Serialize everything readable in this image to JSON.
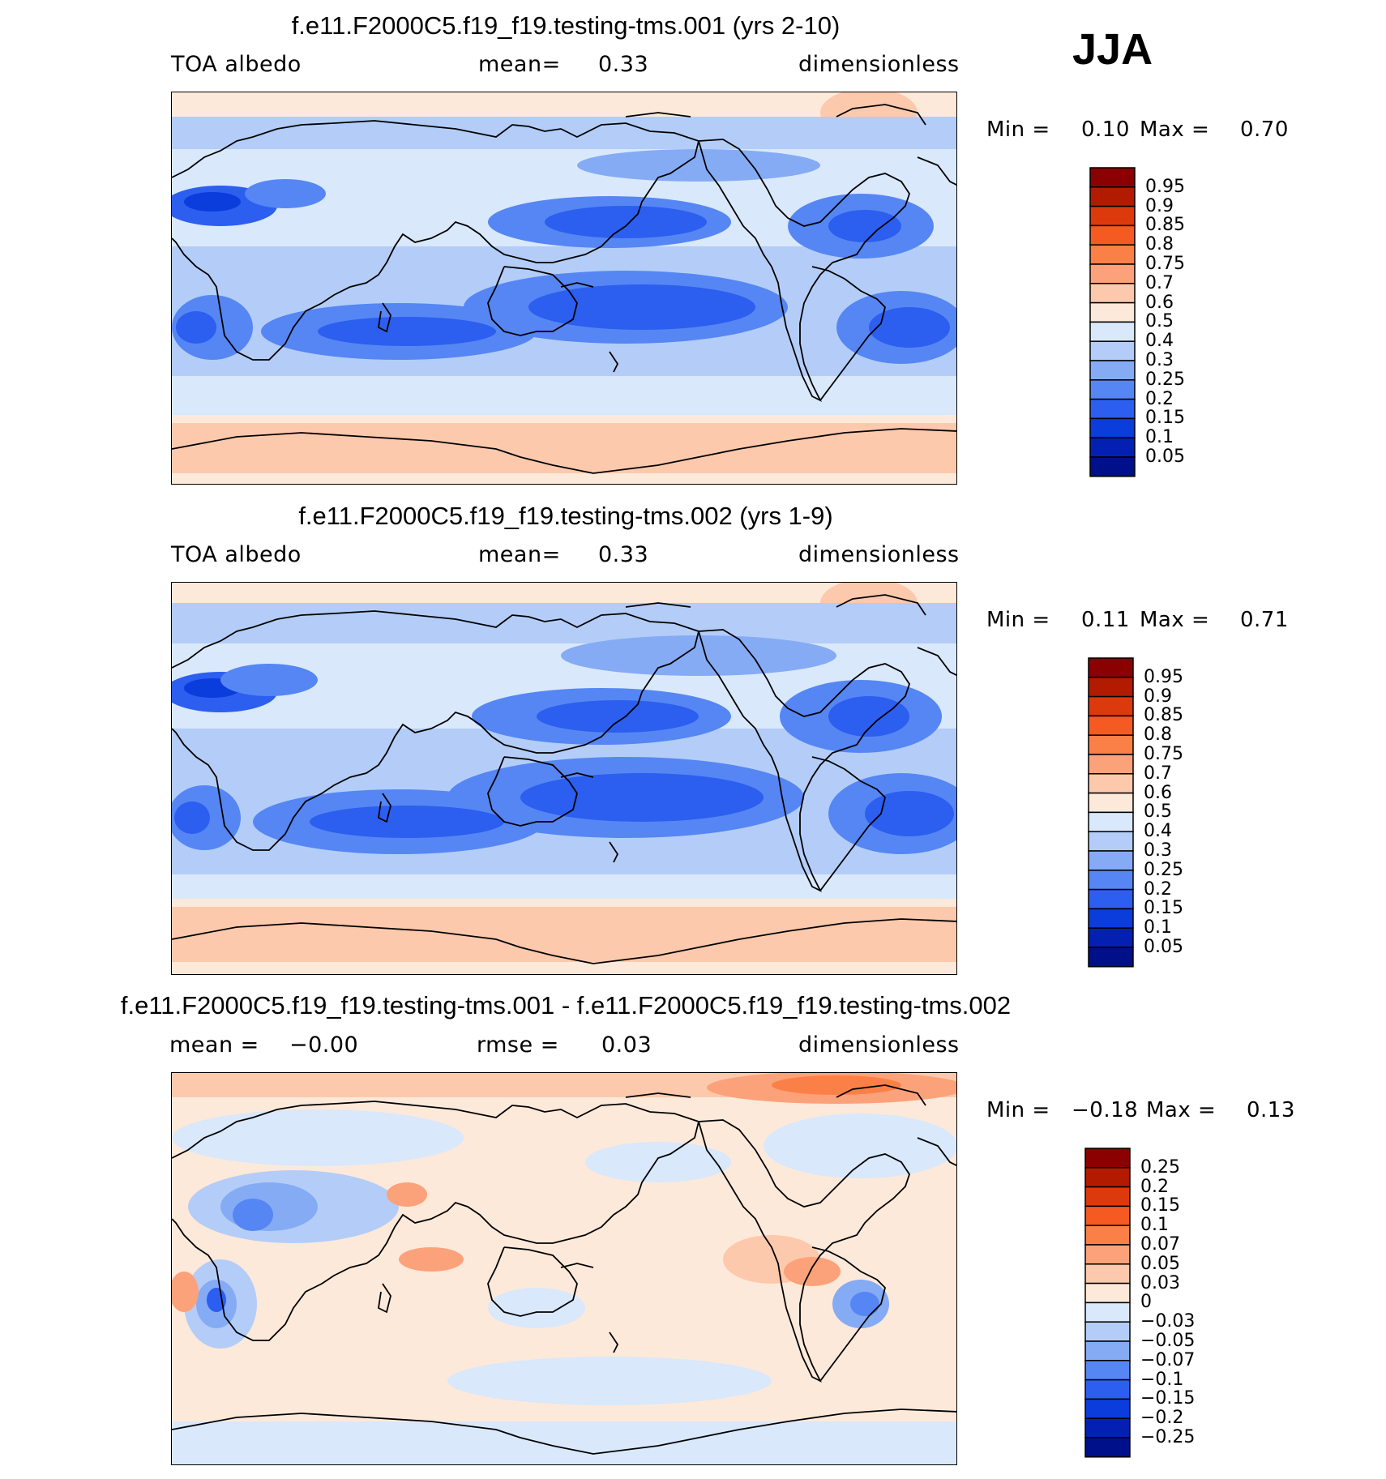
{
  "season": "JJA",
  "panels": [
    {
      "title": "f.e11.F2000C5.f19_f19.testing-tms.001 (yrs 2-10)",
      "left_label": "TOA  albedo",
      "mid_label": "mean=",
      "mid_value": "0.33",
      "units": "dimensionless",
      "min_label": "Min  =",
      "min_value": "0.10",
      "max_label": "Max  =",
      "max_value": "0.70"
    },
    {
      "title": "f.e11.F2000C5.f19_f19.testing-tms.002 (yrs 1-9)",
      "left_label": "TOA  albedo",
      "mid_label": "mean=",
      "mid_value": "0.33",
      "units": "dimensionless",
      "min_label": "Min  =",
      "min_value": "0.11",
      "max_label": "Max  =",
      "max_value": "0.71"
    },
    {
      "title": "f.e11.F2000C5.f19_f19.testing-tms.001 - f.e11.F2000C5.f19_f19.testing-tms.002",
      "left_label": "mean  =",
      "left_value": "−0.00",
      "mid_label": "rmse  =",
      "mid_value": "0.03",
      "units": "dimensionless",
      "min_label": "Min  =",
      "min_value": "−0.18",
      "max_label": "Max  =",
      "max_value": "0.13"
    }
  ],
  "colorbars": [
    {
      "levels": [
        "0.95",
        "0.9",
        "0.85",
        "0.8",
        "0.75",
        "0.7",
        "0.6",
        "0.5",
        "0.4",
        "0.3",
        "0.25",
        "0.2",
        "0.15",
        "0.1",
        "0.05"
      ],
      "colors": [
        "#8b0000",
        "#b31b00",
        "#dc3a0c",
        "#f45a22",
        "#fb8048",
        "#fca27a",
        "#fdc9ac",
        "#fde9da",
        "#d9e8fb",
        "#b3cdf8",
        "#85abf5",
        "#5586f3",
        "#2c5ef0",
        "#0b3cdc",
        "#0420b2",
        "#000f8a"
      ]
    },
    {
      "levels": [
        "0.95",
        "0.9",
        "0.85",
        "0.8",
        "0.75",
        "0.7",
        "0.6",
        "0.5",
        "0.4",
        "0.3",
        "0.25",
        "0.2",
        "0.15",
        "0.1",
        "0.05"
      ],
      "colors": [
        "#8b0000",
        "#b31b00",
        "#dc3a0c",
        "#f45a22",
        "#fb8048",
        "#fca27a",
        "#fdc9ac",
        "#fde9da",
        "#d9e8fb",
        "#b3cdf8",
        "#85abf5",
        "#5586f3",
        "#2c5ef0",
        "#0b3cdc",
        "#0420b2",
        "#000f8a"
      ]
    },
    {
      "levels": [
        "0.25",
        "0.2",
        "0.15",
        "0.1",
        "0.07",
        "0.05",
        "0.03",
        "0",
        "−0.03",
        "−0.05",
        "−0.07",
        "−0.1",
        "−0.15",
        "−0.2",
        "−0.25"
      ],
      "colors": [
        "#8b0000",
        "#b31b00",
        "#dc3a0c",
        "#f45a22",
        "#fb8048",
        "#fca27a",
        "#fdc9ac",
        "#fde9da",
        "#d9e8fb",
        "#b3cdf8",
        "#85abf5",
        "#5586f3",
        "#2c5ef0",
        "#0b3cdc",
        "#0420b2",
        "#000f8a"
      ]
    }
  ]
}
